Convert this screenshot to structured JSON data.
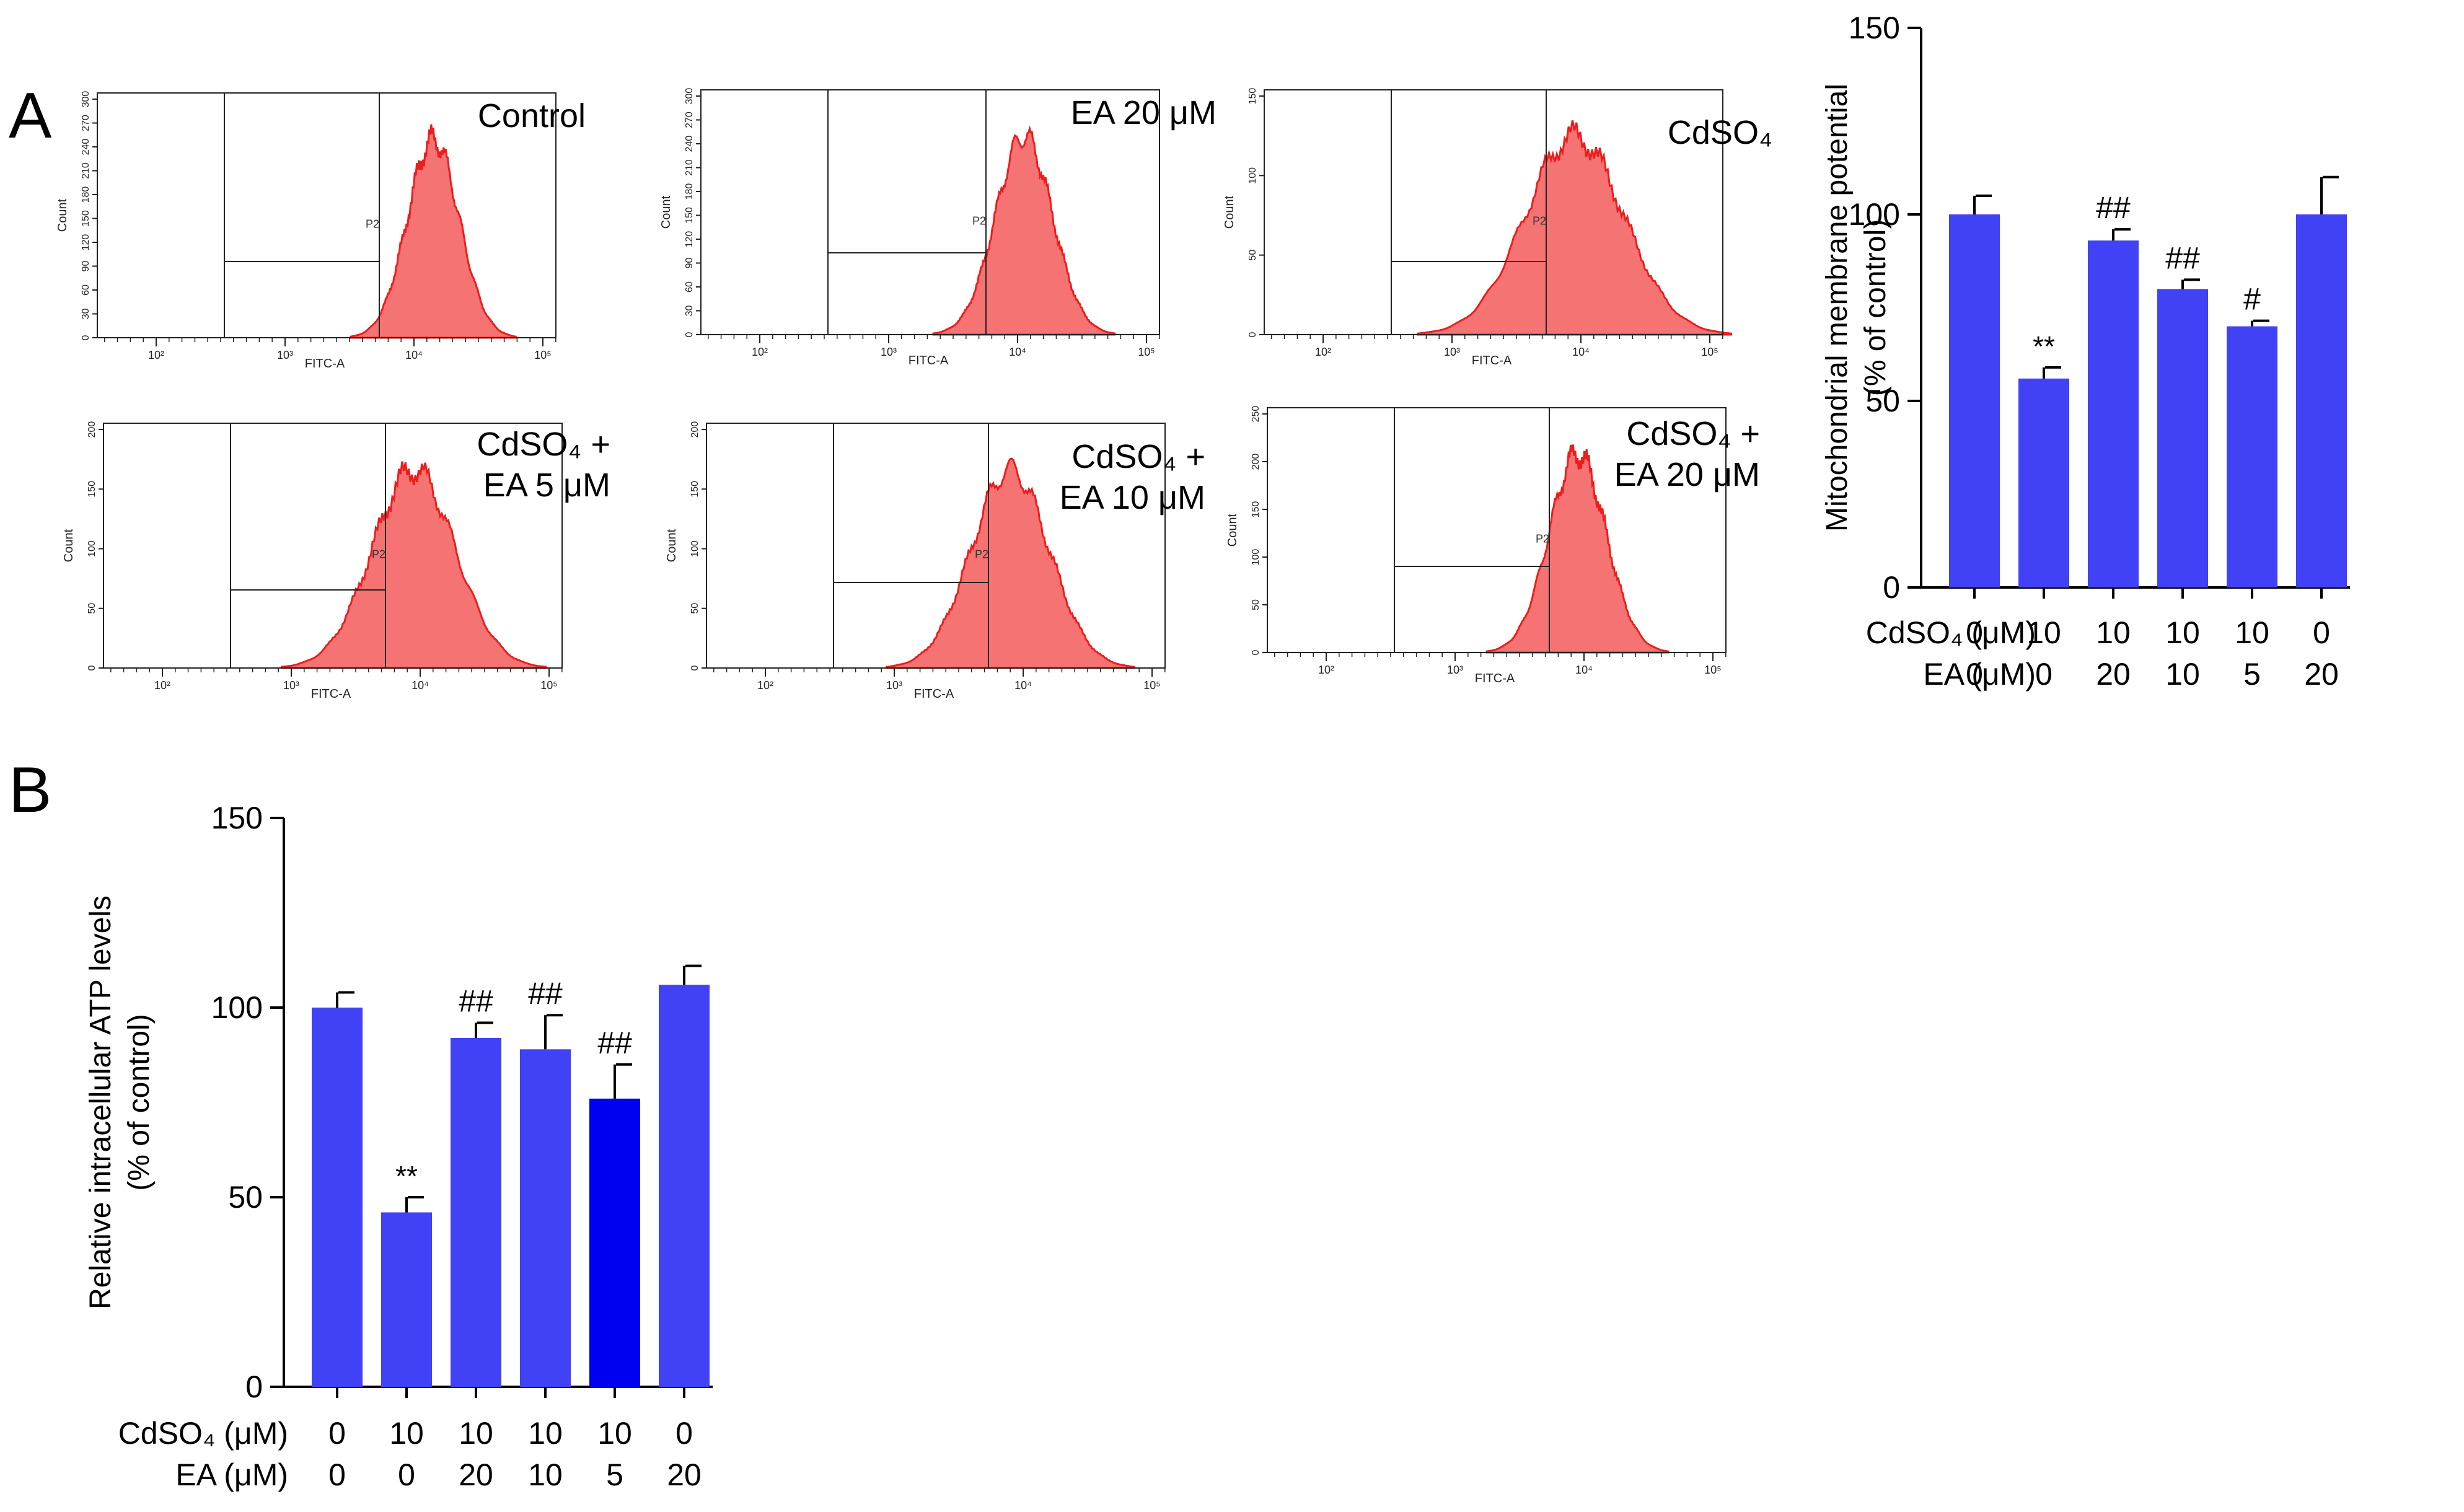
{
  "panel_labels": {
    "a": "A",
    "b": "B"
  },
  "colors": {
    "bar": "#4141f5",
    "bar_dark": "#0000f0",
    "hist_fill": "#f57373",
    "hist_edge": "#ee1c1c"
  },
  "flow": {
    "y_label": "Count",
    "x_label": "FITC-A",
    "gate_label": "P2",
    "x_ticks": [
      "10²",
      "10³",
      "10⁴",
      "10⁵"
    ],
    "panels": [
      {
        "title_lines": [
          "Control"
        ],
        "y_ticks": [
          "0",
          "30",
          "60",
          "90",
          "120",
          "150",
          "180",
          "210",
          "240",
          "270",
          "300"
        ],
        "peak_log": 4.15,
        "width": 0.2
      },
      {
        "title_lines": [
          "EA 20 μM"
        ],
        "y_ticks": [
          "0",
          "30",
          "60",
          "90",
          "120",
          "150",
          "180",
          "210",
          "240",
          "270",
          "300"
        ],
        "peak_log": 4.05,
        "width": 0.22
      },
      {
        "title_lines": [
          "CdSO₄"
        ],
        "y_ticks": [
          "0",
          "50",
          "100",
          "150"
        ],
        "peak_log": 3.95,
        "width": 0.38
      },
      {
        "title_lines": [
          "CdSO₄ +",
          "EA 5 μM"
        ],
        "y_ticks": [
          "0",
          "50",
          "100",
          "150",
          "200"
        ],
        "peak_log": 3.95,
        "width": 0.32
      },
      {
        "title_lines": [
          "CdSO₄ +",
          "EA 10 μM"
        ],
        "y_ticks": [
          "0",
          "50",
          "100",
          "150",
          "200"
        ],
        "peak_log": 3.9,
        "width": 0.3
      },
      {
        "title_lines": [
          "CdSO₄ +",
          "EA 20 μM"
        ],
        "y_ticks": [
          "0",
          "50",
          "100",
          "150",
          "200",
          "250"
        ],
        "peak_log": 3.95,
        "width": 0.22
      }
    ]
  },
  "chart_data": [
    {
      "type": "bar",
      "title": "",
      "ylabel_lines": [
        "Mitochondrial membrane potential",
        "(% of control)"
      ],
      "ylim": [
        0,
        150
      ],
      "yticks": [
        0,
        50,
        100,
        150
      ],
      "row_labels": [
        "CdSO₄ (μM)",
        "EA (μM)"
      ],
      "cdso4": [
        "0",
        "10",
        "10",
        "10",
        "10",
        "0"
      ],
      "ea": [
        "0",
        "0",
        "20",
        "10",
        "5",
        "20"
      ],
      "values": [
        100,
        56,
        93,
        80,
        70,
        100
      ],
      "errors": [
        5,
        3,
        3,
        2.5,
        1.5,
        10
      ],
      "annotations": [
        "",
        "**",
        "##",
        "##",
        "#",
        ""
      ]
    },
    {
      "type": "bar",
      "title": "",
      "ylabel_lines": [
        "Relative intracellular  ATP levels",
        "(% of control)"
      ],
      "ylim": [
        0,
        150
      ],
      "yticks": [
        0,
        50,
        100,
        150
      ],
      "row_labels": [
        "CdSO₄ (μM)",
        "EA (μM)"
      ],
      "cdso4": [
        "0",
        "10",
        "10",
        "10",
        "10",
        "0"
      ],
      "ea": [
        "0",
        "0",
        "20",
        "10",
        "5",
        "20"
      ],
      "values": [
        100,
        46,
        92,
        89,
        76,
        106
      ],
      "errors": [
        4,
        4,
        4,
        9,
        9,
        5
      ],
      "annotations": [
        "",
        "**",
        "##",
        "##",
        "##",
        ""
      ]
    }
  ]
}
